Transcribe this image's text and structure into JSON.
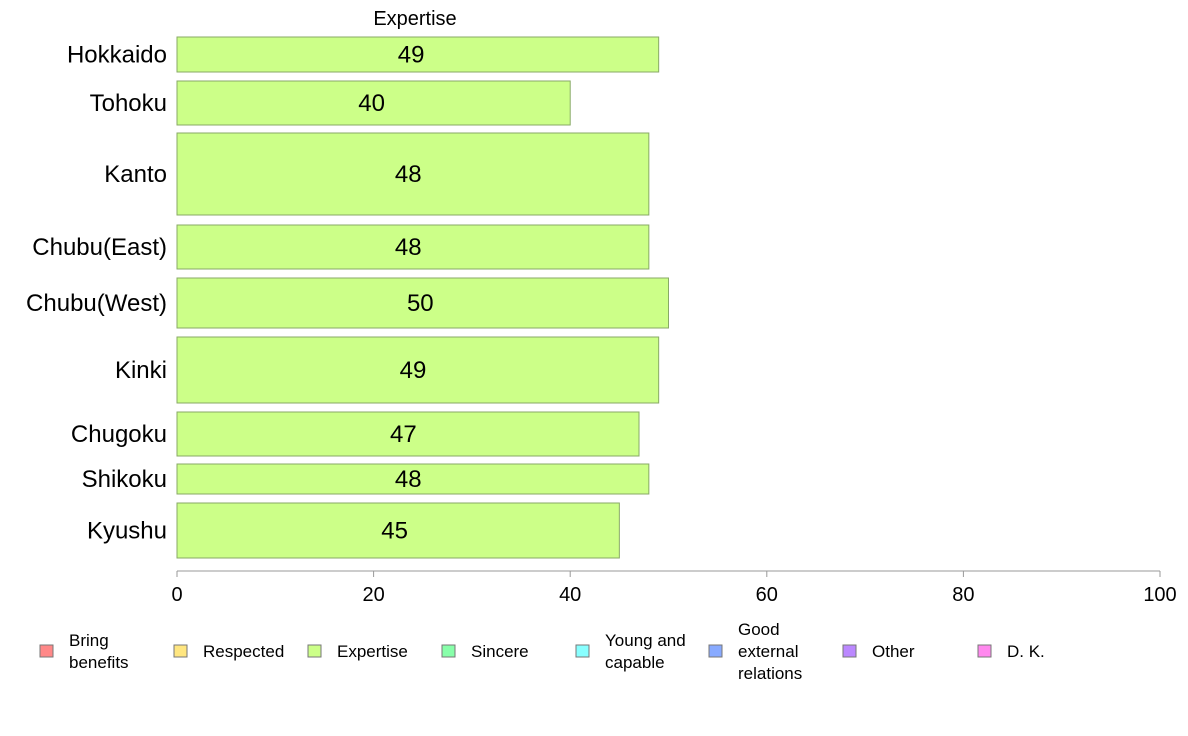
{
  "chart_data": {
    "type": "bar",
    "orientation": "horizontal",
    "title": "Expertise",
    "categories": [
      "Hokkaido",
      "Tohoku",
      "Kanto",
      "Chubu(East)",
      "Chubu(West)",
      "Kinki",
      "Chugoku",
      "Shikoku",
      "Kyushu"
    ],
    "values": [
      49,
      40,
      48,
      48,
      50,
      49,
      47,
      48,
      45
    ],
    "value_labels": [
      "49",
      "40",
      "48",
      "48",
      "50",
      "49",
      "47",
      "48",
      "45"
    ],
    "xlim": [
      0,
      100
    ],
    "xticks": [
      0,
      20,
      40,
      60,
      80,
      100
    ],
    "tick_labels": [
      "0",
      "20",
      "40",
      "60",
      "80",
      "100"
    ],
    "grid": false,
    "bar_color": "#ccff88",
    "bar_edge_color": "#88aa66",
    "legend_position": "bottom",
    "legend": [
      {
        "lines": [
          "Bring",
          "benefits"
        ],
        "color": "#ff8888"
      },
      {
        "lines": [
          "Respected"
        ],
        "color": "#ffe680"
      },
      {
        "lines": [
          "Expertise"
        ],
        "color": "#ccff88"
      },
      {
        "lines": [
          "Sincere"
        ],
        "color": "#88ffaa"
      },
      {
        "lines": [
          "Young and",
          "capable"
        ],
        "color": "#88ffff"
      },
      {
        "lines": [
          "Good",
          "external",
          "relations"
        ],
        "color": "#88aaff"
      },
      {
        "lines": [
          "Other"
        ],
        "color": "#bb88ff"
      },
      {
        "lines": [
          "D. K."
        ],
        "color": "#ff88ee"
      }
    ]
  }
}
